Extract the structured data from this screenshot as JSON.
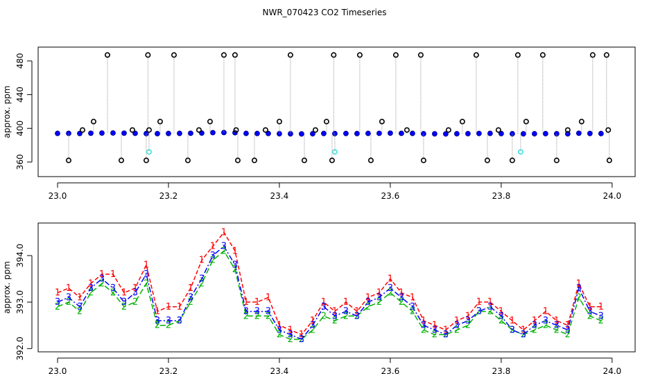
{
  "chart_data": [
    {
      "type": "scatter",
      "title": "NWR_070423  CO2 Timeseries",
      "ylabel": "approx. ppm",
      "xlim": [
        22.965,
        24.0415
      ],
      "ylim": [
        342.7,
        496.4
      ],
      "xticks": [
        {
          "value": 23.0,
          "label": "23.0"
        },
        23.2,
        23.4,
        23.6,
        23.8,
        {
          "value": 24.0,
          "label": "24.0"
        }
      ],
      "yticks": [
        360,
        400,
        440,
        480
      ],
      "series": [
        {
          "color": "#0000ff",
          "marker": "dot",
          "x": [
            23.0,
            23.02,
            23.04,
            23.06,
            23.08,
            23.1,
            23.12,
            23.14,
            23.16,
            23.18,
            23.2,
            23.22,
            23.24,
            23.26,
            23.28,
            23.3,
            23.32,
            23.34,
            23.36,
            23.38,
            23.4,
            23.42,
            23.44,
            23.46,
            23.48,
            23.5,
            23.52,
            23.54,
            23.56,
            23.58,
            23.6,
            23.62,
            23.64,
            23.66,
            23.68,
            23.7,
            23.72,
            23.74,
            23.76,
            23.78,
            23.8,
            23.82,
            23.84,
            23.86,
            23.88,
            23.9,
            23.92,
            23.94,
            23.96,
            23.98
          ],
          "values": [
            394,
            394.1,
            393.9,
            394.2,
            394.4,
            394.5,
            394.3,
            394.1,
            393.8,
            393.7,
            393.9,
            394.0,
            394.2,
            394.4,
            394.9,
            395.0,
            394.8,
            394.0,
            393.9,
            393.9,
            393.6,
            393.5,
            393.4,
            393.6,
            393.9,
            393.8,
            393.9,
            393.8,
            394.0,
            394.1,
            394.3,
            394.1,
            394.0,
            393.6,
            393.5,
            393.4,
            393.6,
            393.7,
            393.9,
            394.0,
            393.8,
            393.6,
            393.5,
            393.6,
            393.7,
            393.6,
            393.5,
            394.2,
            393.9,
            393.8
          ]
        },
        {
          "color": "#000000",
          "marker": "circle",
          "x": [
            23.02,
            23.045,
            23.065,
            23.09,
            23.115,
            23.135,
            23.16,
            23.163,
            23.165,
            23.185,
            23.21,
            23.235,
            23.255,
            23.275,
            23.3,
            23.32,
            23.322,
            23.325,
            23.355,
            23.375,
            23.4,
            23.42,
            23.445,
            23.465,
            23.485,
            23.495,
            23.498,
            23.545,
            23.565,
            23.585,
            23.61,
            23.63,
            23.655,
            23.66,
            23.705,
            23.73,
            23.755,
            23.775,
            23.795,
            23.82,
            23.83,
            23.845,
            23.875,
            23.9,
            23.92,
            23.945,
            23.965,
            23.99,
            23.993,
            23.995
          ],
          "values": [
            362,
            398,
            408,
            487,
            362,
            398,
            362,
            487,
            398,
            408,
            487,
            362,
            398,
            408,
            487,
            487,
            398,
            362,
            362,
            398,
            408,
            487,
            362,
            398,
            408,
            362,
            487,
            487,
            362,
            408,
            487,
            398,
            487,
            362,
            398,
            408,
            487,
            362,
            398,
            362,
            487,
            408,
            487,
            362,
            398,
            408,
            487,
            487,
            398,
            362
          ]
        },
        {
          "color": "#40e0e0",
          "marker": "circle",
          "x": [
            23.165,
            23.5,
            23.835
          ],
          "values": [
            372,
            372,
            372
          ]
        }
      ]
    },
    {
      "type": "line",
      "ylabel": "approx. ppm",
      "xlim": [
        22.965,
        24.0415
      ],
      "ylim": [
        391.93,
        394.7
      ],
      "xticks": [
        {
          "value": 23.0,
          "label": "23.0"
        },
        23.2,
        23.4,
        23.6,
        23.8,
        {
          "value": 24.0,
          "label": "24.0"
        }
      ],
      "yticks": [
        {
          "value": 392,
          "label": "392.0"
        },
        {
          "value": 393,
          "label": "393.0"
        },
        {
          "value": 394,
          "label": "394.0"
        }
      ],
      "x": [
        23.0,
        23.02,
        23.04,
        23.06,
        23.08,
        23.1,
        23.12,
        23.14,
        23.16,
        23.18,
        23.2,
        23.22,
        23.24,
        23.26,
        23.28,
        23.3,
        23.32,
        23.34,
        23.36,
        23.38,
        23.4,
        23.42,
        23.44,
        23.46,
        23.48,
        23.5,
        23.52,
        23.54,
        23.56,
        23.58,
        23.6,
        23.62,
        23.64,
        23.66,
        23.68,
        23.7,
        23.72,
        23.74,
        23.76,
        23.78,
        23.8,
        23.82,
        23.84,
        23.86,
        23.88,
        23.9,
        23.92,
        23.94,
        23.96,
        23.98
      ],
      "series": [
        {
          "name": "1",
          "color": "#ff0000",
          "dash": "6,3",
          "values": [
            393.2,
            393.3,
            393.1,
            393.4,
            393.6,
            393.6,
            393.2,
            393.3,
            393.8,
            392.8,
            392.9,
            392.9,
            393.3,
            393.9,
            394.2,
            394.5,
            394.1,
            393.0,
            393.0,
            393.1,
            392.5,
            392.4,
            392.3,
            392.6,
            393.0,
            392.8,
            393.0,
            392.8,
            393.1,
            393.2,
            393.5,
            393.2,
            393.1,
            392.6,
            392.5,
            392.4,
            392.6,
            392.7,
            393.0,
            393.0,
            392.8,
            392.6,
            392.4,
            392.6,
            392.8,
            392.6,
            392.5,
            393.4,
            392.9,
            392.9
          ]
        },
        {
          "name": "2",
          "color": "#00b000",
          "dash": "8,4",
          "values": [
            392.9,
            393.0,
            392.8,
            393.2,
            393.4,
            393.2,
            392.9,
            393.0,
            393.4,
            392.5,
            392.5,
            392.6,
            393.0,
            393.4,
            393.9,
            394.1,
            393.7,
            392.7,
            392.7,
            392.7,
            392.3,
            392.2,
            392.2,
            392.4,
            392.7,
            392.6,
            392.7,
            392.7,
            392.9,
            393.0,
            393.2,
            393.0,
            392.8,
            392.4,
            392.3,
            392.3,
            392.4,
            392.5,
            392.8,
            392.8,
            392.6,
            392.4,
            392.3,
            392.4,
            392.5,
            392.4,
            392.3,
            393.1,
            392.7,
            392.6
          ]
        },
        {
          "name": "3",
          "color": "#0000ff",
          "dash": "8,3,2,3",
          "values": [
            393.0,
            393.1,
            392.9,
            393.3,
            393.5,
            393.3,
            393.0,
            393.2,
            393.6,
            392.6,
            392.6,
            392.6,
            393.1,
            393.5,
            394.0,
            394.2,
            393.8,
            392.8,
            392.8,
            392.8,
            392.4,
            392.3,
            392.2,
            392.5,
            392.9,
            392.7,
            392.8,
            392.7,
            393.0,
            393.1,
            393.3,
            393.1,
            392.9,
            392.5,
            392.4,
            392.3,
            392.5,
            392.6,
            392.8,
            392.9,
            392.7,
            392.4,
            392.3,
            392.5,
            392.6,
            392.5,
            392.4,
            393.3,
            392.8,
            392.7
          ]
        }
      ]
    }
  ]
}
